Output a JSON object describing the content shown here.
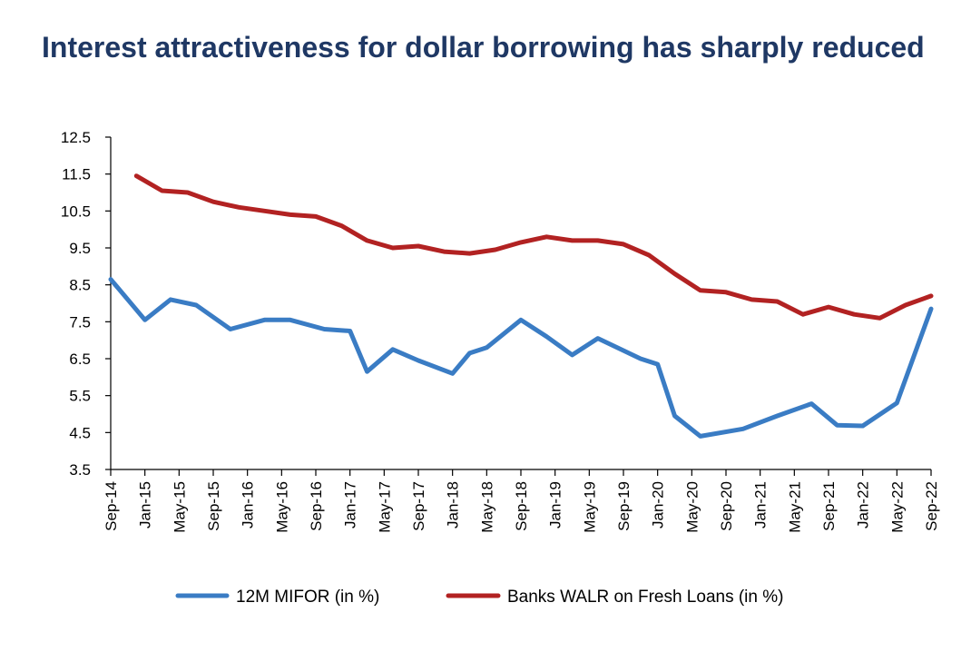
{
  "colors": {
    "title": "#1f3864",
    "mifor": "#3a7cc4",
    "walr": "#b22222",
    "axis": "#000000"
  },
  "chart_data": {
    "type": "line",
    "title": "Interest attractiveness for dollar borrowing has sharply reduced",
    "xlabel": "",
    "ylabel": "",
    "ylim": [
      3.5,
      12.5
    ],
    "yticks": [
      "12.5",
      "11.5",
      "10.5",
      "9.5",
      "8.5",
      "7.5",
      "6.5",
      "5.5",
      "4.5",
      "3.5"
    ],
    "x_tick_labels": [
      "Sep-14",
      "Jan-15",
      "May-15",
      "Sep-15",
      "Jan-16",
      "May-16",
      "Sep-16",
      "Jan-17",
      "May-17",
      "Sep-17",
      "Jan-18",
      "May-18",
      "Sep-18",
      "Jan-19",
      "May-19",
      "Sep-19",
      "Jan-20",
      "May-20",
      "Sep-20",
      "Jan-21",
      "May-21",
      "Sep-21",
      "Jan-22",
      "May-22",
      "Sep-22"
    ],
    "x_range_months": [
      0,
      96
    ],
    "series": [
      {
        "name": "12M MIFOR (in %)",
        "x": [
          0,
          4,
          7,
          10,
          14,
          18,
          21,
          25,
          28,
          30,
          33,
          36,
          40,
          42,
          44,
          48,
          51,
          54,
          57,
          62,
          64,
          66,
          69,
          74,
          78,
          82,
          85,
          88,
          92,
          96
        ],
        "values": [
          8.65,
          7.55,
          8.1,
          7.95,
          7.3,
          7.55,
          7.55,
          7.3,
          7.25,
          6.15,
          6.75,
          6.45,
          6.1,
          6.65,
          6.8,
          7.55,
          7.1,
          6.6,
          7.05,
          6.5,
          6.35,
          4.95,
          4.4,
          4.6,
          4.95,
          5.28,
          4.7,
          4.68,
          5.3,
          7.85
        ]
      },
      {
        "name": "Banks WALR on Fresh Loans (in %)",
        "x": [
          3,
          6,
          9,
          12,
          15,
          18,
          21,
          24,
          27,
          30,
          33,
          36,
          39,
          42,
          45,
          48,
          51,
          54,
          57,
          60,
          63,
          66,
          69,
          72,
          75,
          78,
          81,
          84,
          87,
          90,
          93,
          96
        ],
        "values": [
          11.45,
          11.05,
          11.0,
          10.75,
          10.6,
          10.5,
          10.4,
          10.35,
          10.1,
          9.7,
          9.5,
          9.55,
          9.4,
          9.35,
          9.45,
          9.65,
          9.8,
          9.7,
          9.7,
          9.6,
          9.3,
          8.8,
          8.35,
          8.3,
          8.1,
          8.05,
          7.7,
          7.9,
          7.7,
          7.6,
          7.95,
          8.2
        ]
      }
    ],
    "legend": [
      "12M MIFOR (in %)",
      "Banks WALR on Fresh Loans (in %)"
    ],
    "legend_position": "bottom",
    "grid": false
  }
}
